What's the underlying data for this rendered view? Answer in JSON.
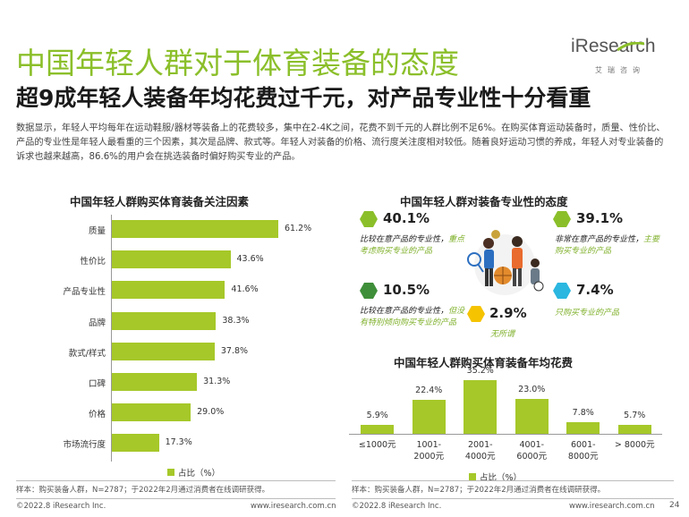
{
  "page": {
    "title": "中国年轻人群对于体育装备的态度",
    "subtitle": "超9成年轻人装备年均花费过千元，对产品专业性十分看重",
    "body": "数据显示，年轻人平均每年在运动鞋服/器材等装备上的花费较多，集中在2-4K之间，花费不到千元的人群比例不足6%。在购买体育运动装备时，质量、性价比、产品的专业性是年轻人最看重的三个因素，其次是品牌、款式等。年轻人对装备的价格、流行度关注度相对较低。随着良好运动习惯的养成，年轻人对专业装备的诉求也越来越高，86.6%的用户会在挑选装备时偏好购买专业的产品。",
    "page_number": "24"
  },
  "logo": {
    "main": "iResearch",
    "sub": "艾瑞咨询",
    "accent_color": "#8bbf2a"
  },
  "colors": {
    "accent": "#a6c829",
    "title_green": "#8bbf2a",
    "hex_cyan": "#2bb7e0",
    "hex_yellow": "#f5c300"
  },
  "left_chart": {
    "title": "中国年轻人群购买体育装备关注因素",
    "legend": "占比（%）",
    "source": "样本：购买装备人群，N=2787；于2022年2月通过消费者在线调研获得。",
    "copyright": "©2022.8 iResearch Inc.",
    "website": "www.iresearch.com.cn"
  },
  "middle_chart": {
    "title": "中国年轻人群对装备专业性的态度",
    "items": [
      {
        "pct": "40.1%",
        "text_a": "比较在意产品的专业性，",
        "text_b": "重点考虑购买专业的产品",
        "icon": "green-hexagon-icon"
      },
      {
        "pct": "39.1%",
        "text_a": "非常在意产品的专业性，",
        "text_b": "主要购买专业的产品",
        "icon": "green-hexagon-icon"
      },
      {
        "pct": "10.5%",
        "text_a": "比较在意产品的专业性，",
        "text_b": "但没有特别倾向购买专业的产品",
        "icon": "dark-green-hexagon-icon"
      },
      {
        "pct": "7.4%",
        "text_a": "",
        "text_b": "只购买专业的产品",
        "icon": "cyan-hexagon-icon"
      },
      {
        "pct": "2.9%",
        "text_a": "",
        "text_b": "无所谓",
        "icon": "yellow-hexagon-icon"
      }
    ]
  },
  "right_chart": {
    "title": "中国年轻人群购买体育装备年均花费",
    "legend": "占比（%）",
    "source": "样本：购买装备人群，N=2787；于2022年2月通过消费者在线调研获得。",
    "copyright": "©2022.8 iResearch Inc.",
    "website": "www.iresearch.com.cn"
  },
  "chart_data": [
    {
      "type": "bar",
      "orientation": "horizontal",
      "title": "中国年轻人群购买体育装备关注因素",
      "categories": [
        "质量",
        "性价比",
        "产品专业性",
        "品牌",
        "款式/样式",
        "口碑",
        "价格",
        "市场流行度"
      ],
      "values": [
        61.2,
        43.6,
        41.6,
        38.3,
        37.8,
        31.3,
        29.0,
        17.3
      ],
      "value_labels": [
        "61.2%",
        "43.6%",
        "41.6%",
        "38.3%",
        "37.8%",
        "31.3%",
        "29.0%",
        "17.3%"
      ],
      "legend": "占比（%）",
      "legend_position": "bottom",
      "grid": false
    },
    {
      "type": "bar",
      "title": "中国年轻人群对装备专业性的态度",
      "categories": [
        "比较在意产品的专业性，重点考虑购买专业的产品",
        "非常在意产品的专业性，主要购买专业的产品",
        "比较在意产品的专业性，但没有特别倾向购买专业的产品",
        "只购买专业的产品",
        "无所谓"
      ],
      "values": [
        40.1,
        39.1,
        10.5,
        7.4,
        2.9
      ]
    },
    {
      "type": "bar",
      "orientation": "vertical",
      "title": "中国年轻人群购买体育装备年均花费",
      "categories": [
        "≤1000元",
        "1001-\n2000元",
        "2001-\n4000元",
        "4001-\n6000元",
        "6001-\n8000元",
        "> 8000元"
      ],
      "values": [
        5.9,
        22.4,
        35.2,
        23.0,
        7.8,
        5.7
      ],
      "value_labels": [
        "5.9%",
        "22.4%",
        "35.2%",
        "23.0%",
        "7.8%",
        "5.7%"
      ],
      "legend": "占比（%）",
      "legend_position": "bottom",
      "grid": false
    }
  ]
}
